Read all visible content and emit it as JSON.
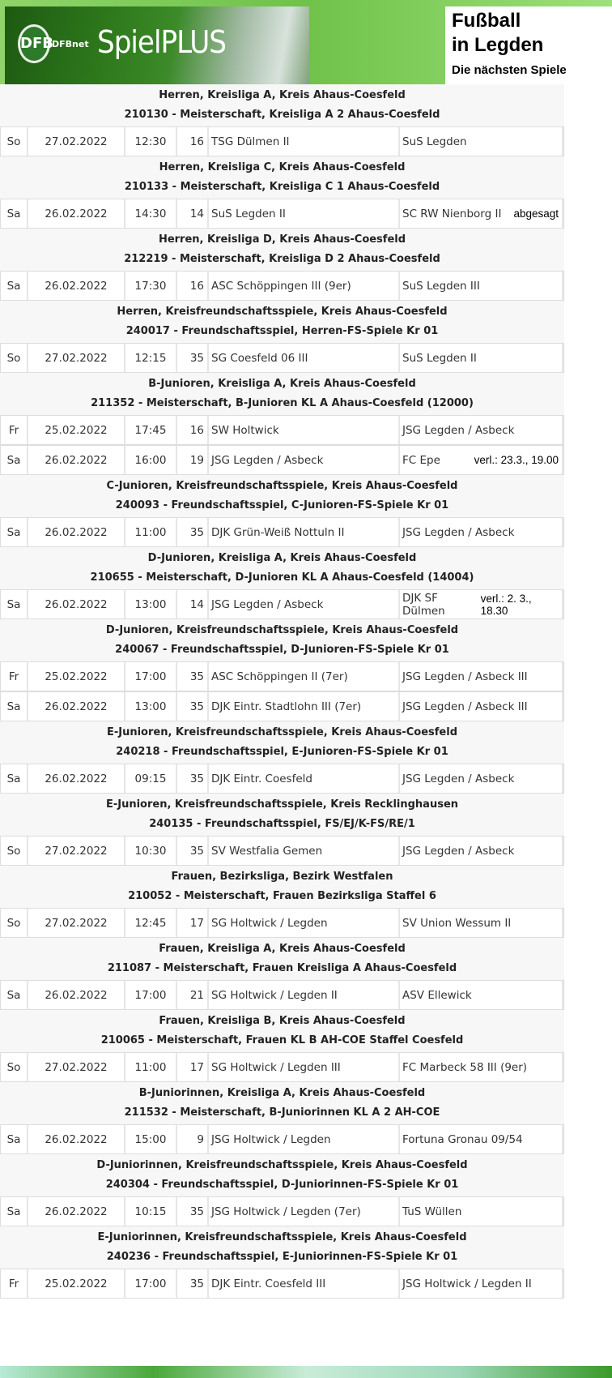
{
  "banner": {
    "logo": "DFB",
    "brand": "DFBnet",
    "product": "SpielPLUS",
    "title1": "Fußball",
    "title2": "in Legden",
    "subtitle": "Die nächsten Spiele"
  },
  "sections": [
    {
      "l1": "Herren, Kreisliga A, Kreis Ahaus-Coesfeld",
      "l2": "210130 - Meisterschaft, Kreisliga A 2 Ahaus-Coesfeld",
      "games": [
        [
          "So",
          "27.02.2022",
          "12:30",
          "16",
          "TSG Dülmen II",
          "SuS Legden",
          ""
        ]
      ]
    },
    {
      "l1": "Herren, Kreisliga C, Kreis Ahaus-Coesfeld",
      "l2": "210133 - Meisterschaft, Kreisliga C 1 Ahaus-Coesfeld",
      "games": [
        [
          "Sa",
          "26.02.2022",
          "14:30",
          "14",
          "SuS Legden II",
          "SC RW Nienborg II",
          "abgesagt"
        ]
      ]
    },
    {
      "l1": "Herren, Kreisliga D, Kreis Ahaus-Coesfeld",
      "l2": "212219 - Meisterschaft, Kreisliga D 2 Ahaus-Coesfeld",
      "games": [
        [
          "Sa",
          "26.02.2022",
          "17:30",
          "16",
          "ASC Schöppingen III (9er)",
          "SuS Legden III",
          ""
        ]
      ]
    },
    {
      "l1": "Herren, Kreisfreundschaftsspiele, Kreis Ahaus-Coesfeld",
      "l2": "240017 - Freundschaftsspiel, Herren-FS-Spiele Kr 01",
      "games": [
        [
          "So",
          "27.02.2022",
          "12:15",
          "35",
          "SG Coesfeld 06 III",
          "SuS Legden II",
          ""
        ]
      ]
    },
    {
      "l1": "B-Junioren, Kreisliga A, Kreis Ahaus-Coesfeld",
      "l2": "211352 - Meisterschaft, B-Junioren KL A Ahaus-Coesfeld (12000)",
      "games": [
        [
          "Fr",
          "25.02.2022",
          "17:45",
          "16",
          "SW Holtwick",
          "JSG Legden / Asbeck",
          ""
        ],
        [
          "Sa",
          "26.02.2022",
          "16:00",
          "19",
          "JSG Legden / Asbeck",
          "FC Epe",
          "verl.: 23.3., 19.00"
        ]
      ]
    },
    {
      "l1": "C-Junioren, Kreisfreundschaftsspiele, Kreis Ahaus-Coesfeld",
      "l2": "240093 - Freundschaftsspiel, C-Junioren-FS-Spiele Kr 01",
      "games": [
        [
          "Sa",
          "26.02.2022",
          "11:00",
          "35",
          "DJK Grün-Weiß Nottuln II",
          "JSG Legden / Asbeck",
          ""
        ]
      ]
    },
    {
      "l1": "D-Junioren, Kreisliga A, Kreis Ahaus-Coesfeld",
      "l2": "210655 - Meisterschaft, D-Junioren KL A Ahaus-Coesfeld (14004)",
      "games": [
        [
          "Sa",
          "26.02.2022",
          "13:00",
          "14",
          "JSG Legden / Asbeck",
          "DJK SF Dülmen",
          "verl.: 2. 3., 18.30"
        ]
      ]
    },
    {
      "l1": "D-Junioren, Kreisfreundschaftsspiele, Kreis Ahaus-Coesfeld",
      "l2": "240067 - Freundschaftsspiel, D-Junioren-FS-Spiele Kr 01",
      "games": [
        [
          "Fr",
          "25.02.2022",
          "17:00",
          "35",
          "ASC Schöppingen II (7er)",
          "JSG Legden / Asbeck III",
          ""
        ],
        [
          "Sa",
          "26.02.2022",
          "13:00",
          "35",
          "DJK Eintr. Stadtlohn III (7er)",
          "JSG Legden / Asbeck III",
          ""
        ]
      ]
    },
    {
      "l1": "E-Junioren, Kreisfreundschaftsspiele, Kreis Ahaus-Coesfeld",
      "l2": "240218 - Freundschaftsspiel, E-Junioren-FS-Spiele Kr 01",
      "games": [
        [
          "Sa",
          "26.02.2022",
          "09:15",
          "35",
          "DJK Eintr. Coesfeld",
          "JSG Legden / Asbeck",
          ""
        ]
      ]
    },
    {
      "l1": "E-Junioren, Kreisfreundschaftsspiele, Kreis Recklinghausen",
      "l2": "240135 - Freundschaftsspiel, FS/EJ/K-FS/RE/1",
      "games": [
        [
          "So",
          "27.02.2022",
          "10:30",
          "35",
          "SV Westfalia Gemen",
          "JSG Legden / Asbeck",
          ""
        ]
      ]
    },
    {
      "l1": "Frauen, Bezirksliga, Bezirk Westfalen",
      "l2": "210052 - Meisterschaft, Frauen Bezirksliga Staffel 6",
      "games": [
        [
          "So",
          "27.02.2022",
          "12:45",
          "17",
          "SG Holtwick / Legden",
          "SV Union Wessum II",
          ""
        ]
      ]
    },
    {
      "l1": "Frauen, Kreisliga A, Kreis Ahaus-Coesfeld",
      "l2": "211087 - Meisterschaft, Frauen Kreisliga A Ahaus-Coesfeld",
      "games": [
        [
          "Sa",
          "26.02.2022",
          "17:00",
          "21",
          "SG Holtwick / Legden II",
          "ASV Ellewick",
          ""
        ]
      ]
    },
    {
      "l1": "Frauen, Kreisliga B, Kreis Ahaus-Coesfeld",
      "l2": "210065 - Meisterschaft, Frauen KL B AH-COE Staffel Coesfeld",
      "games": [
        [
          "So",
          "27.02.2022",
          "11:00",
          "17",
          "SG Holtwick / Legden III",
          "FC Marbeck 58 III (9er)",
          ""
        ]
      ]
    },
    {
      "l1": "B-Juniorinnen, Kreisliga A, Kreis Ahaus-Coesfeld",
      "l2": "211532 - Meisterschaft, B-Juniorinnen KL A 2 AH-COE",
      "games": [
        [
          "Sa",
          "26.02.2022",
          "15:00",
          "9",
          "JSG Holtwick / Legden",
          "Fortuna Gronau 09/54",
          ""
        ]
      ]
    },
    {
      "l1": "D-Juniorinnen, Kreisfreundschaftsspiele, Kreis Ahaus-Coesfeld",
      "l2": "240304 - Freundschaftsspiel, D-Juniorinnen-FS-Spiele Kr 01",
      "games": [
        [
          "Sa",
          "26.02.2022",
          "10:15",
          "35",
          "JSG Holtwick / Legden (7er)",
          "TuS Wüllen",
          ""
        ]
      ]
    },
    {
      "l1": "E-Juniorinnen, Kreisfreundschaftsspiele, Kreis Ahaus-Coesfeld",
      "l2": "240236 - Freundschaftsspiel, E-Juniorinnen-FS-Spiele Kr 01",
      "games": [
        [
          "Fr",
          "25.02.2022",
          "17:00",
          "35",
          "DJK Eintr. Coesfeld III",
          "JSG Holtwick / Legden II",
          ""
        ]
      ]
    }
  ]
}
